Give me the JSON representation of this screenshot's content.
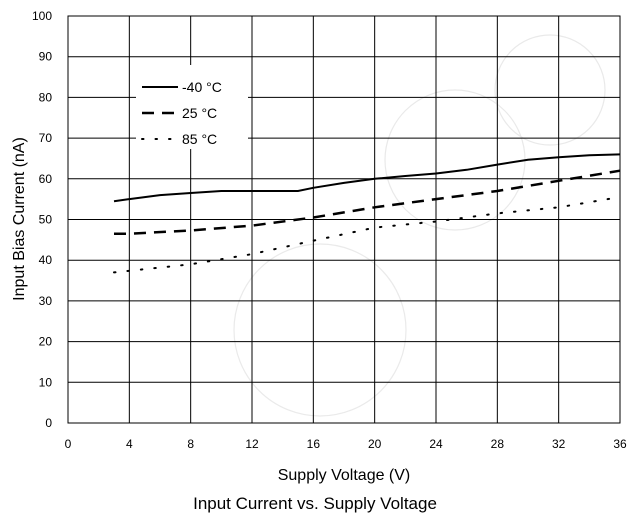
{
  "chart_data": {
    "type": "line",
    "title": "Input Current vs. Supply Voltage",
    "xlabel": "Supply Voltage (V)",
    "ylabel": "Input Bias Current (nA)",
    "xlim": [
      0,
      36
    ],
    "ylim": [
      0,
      100
    ],
    "x_ticks": [
      0,
      4,
      8,
      12,
      16,
      20,
      24,
      28,
      32,
      36
    ],
    "y_ticks": [
      0,
      10,
      20,
      30,
      40,
      50,
      60,
      70,
      80,
      90,
      100
    ],
    "grid": true,
    "legend_position": "top-left",
    "series": [
      {
        "name": "-40 °C",
        "style": "solid",
        "x": [
          3,
          4,
          6,
          8,
          10,
          12,
          14,
          15,
          16,
          18,
          20,
          22,
          24,
          26,
          28,
          30,
          32,
          34,
          36
        ],
        "y": [
          54.5,
          55,
          56,
          56.5,
          57,
          57,
          57,
          57,
          57.8,
          59,
          60,
          60.7,
          61.3,
          62.2,
          63.5,
          64.7,
          65.3,
          65.8,
          66
        ]
      },
      {
        "name": "25 °C",
        "style": "dashed",
        "x": [
          3,
          4,
          8,
          12,
          16,
          20,
          24,
          28,
          32,
          36
        ],
        "y": [
          46.5,
          46.5,
          47.3,
          48.5,
          50.5,
          53,
          55,
          57,
          59.5,
          62
        ]
      },
      {
        "name": "85 °C",
        "style": "dotted",
        "x": [
          3,
          4,
          8,
          12,
          16,
          20,
          24,
          28,
          32,
          36
        ],
        "y": [
          37,
          37.4,
          39,
          41.5,
          44.8,
          48,
          49.5,
          51.5,
          53,
          55.5
        ]
      }
    ]
  }
}
